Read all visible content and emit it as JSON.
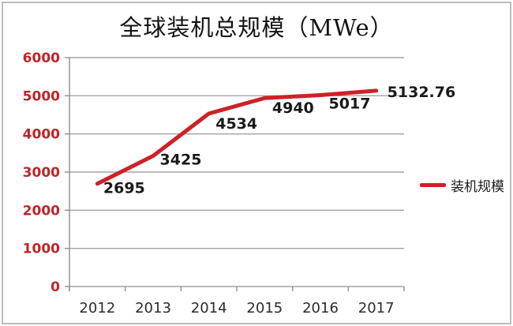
{
  "chart_data": {
    "type": "line",
    "title": "全球装机总规模（MWe）",
    "categories": [
      "2012",
      "2013",
      "2014",
      "2015",
      "2016",
      "2017"
    ],
    "series": [
      {
        "name": "装机规模",
        "values": [
          2695,
          3425,
          4534,
          4940,
          5017,
          5132.76
        ],
        "labels": [
          "2695",
          "3425",
          "4534",
          "4940",
          "5017",
          "5132.76"
        ],
        "color": "#cd2128"
      }
    ],
    "xlabel": "",
    "ylabel": "",
    "ylim": [
      0,
      6000
    ],
    "ytick_step": 1000,
    "y_tick_labels": [
      "0",
      "1000",
      "2000",
      "3000",
      "4000",
      "5000",
      "6000"
    ],
    "grid": "horizontal",
    "legend_position": "right",
    "colors": {
      "line": "#cd2128",
      "y_tick_text": "#bf2428",
      "x_tick_text": "#2b2b2b",
      "data_label": "#1a1a1a",
      "grid": "#a3a3a3",
      "axis": "#8f8f8f",
      "title": "#141414",
      "frame": "#bdbdbd"
    }
  }
}
